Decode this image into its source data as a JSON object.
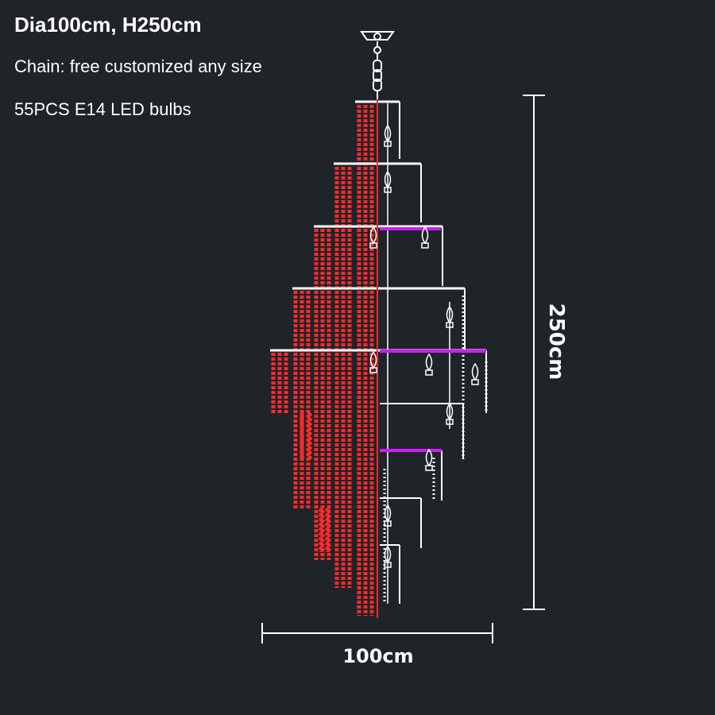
{
  "specs": {
    "title": "Dia100cm, H250cm",
    "chain": "Chain: free customized any size",
    "bulbs": "55PCS E14 LED bulbs"
  },
  "dimensions": {
    "height_label": "250cm",
    "width_label": "100cm"
  },
  "colors": {
    "background": "#1f2429",
    "crystal": "#ff2a2a",
    "frame": "#ffffff",
    "accent": "#d01aff"
  }
}
